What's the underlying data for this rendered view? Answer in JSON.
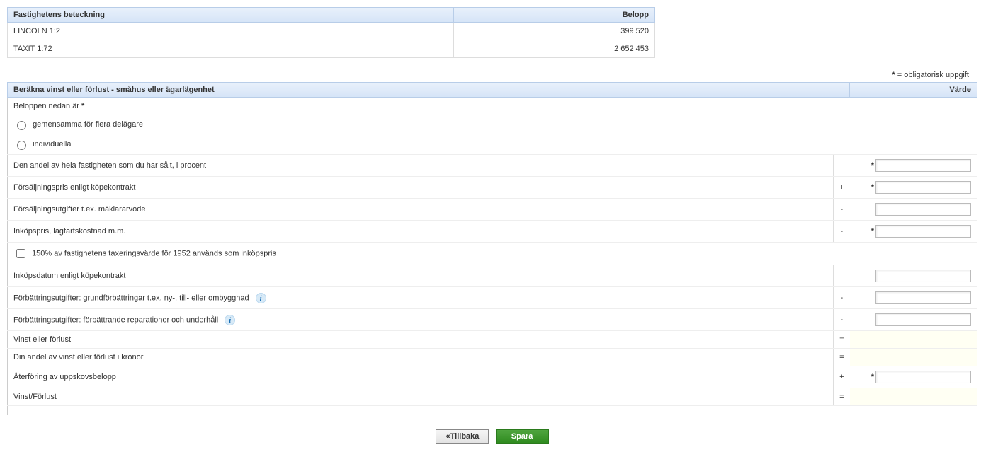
{
  "table1": {
    "headers": {
      "col1": "Fastighetens beteckning",
      "col2": "Belopp"
    },
    "rows": [
      {
        "name": "LINCOLN 1:2",
        "amount": "399 520"
      },
      {
        "name": "TAXIT 1:72",
        "amount": "2 652 453"
      }
    ]
  },
  "legend": {
    "symbol": "*",
    "text": " = obligatorisk uppgift"
  },
  "form": {
    "header_left": "Beräkna vinst eller förlust - småhus eller ägarlägenhet",
    "header_right": "Värde",
    "beloppen_label": "Beloppen nedan är",
    "radio_gemensam": "gemensamma för flera delägare",
    "radio_individ": "individuella",
    "rows": {
      "andel": {
        "label": "Den andel av hela fastigheten som du har sålt, i procent",
        "op": "",
        "required": true,
        "input": true
      },
      "forspris": {
        "label": "Försäljningspris enligt köpekontrakt",
        "op": "+",
        "required": true,
        "input": true
      },
      "forsutg": {
        "label": "Försäljningsutgifter t.ex. mäklararvode",
        "op": "-",
        "required": false,
        "input": true
      },
      "inkop": {
        "label": "Inköpspris, lagfartskostnad m.m.",
        "op": "-",
        "required": true,
        "input": true
      },
      "tax1952": {
        "label": "150% av fastighetens taxeringsvärde för 1952 används som inköpspris"
      },
      "inkopdatum": {
        "label": "Inköpsdatum enligt köpekontrakt",
        "op": "",
        "required": false,
        "input": true
      },
      "forbattr1": {
        "label": "Förbättringsutgifter: grundförbättringar t.ex. ny-, till- eller ombyggnad",
        "op": "-",
        "required": false,
        "input": true,
        "info": true
      },
      "forbattr2": {
        "label": "Förbättringsutgifter: förbättrande reparationer och underhåll",
        "op": "-",
        "required": false,
        "input": true,
        "info": true
      },
      "vinst": {
        "label": "Vinst eller förlust",
        "op": "=",
        "required": false,
        "input": false
      },
      "andelkr": {
        "label": "Din andel av vinst eller förlust i kronor",
        "op": "=",
        "required": false,
        "input": false
      },
      "aterforing": {
        "label": "Återföring av uppskovsbelopp",
        "op": "+",
        "required": true,
        "input": true
      },
      "vinstforlust": {
        "label": "Vinst/Förlust",
        "op": "=",
        "required": false,
        "input": false
      }
    }
  },
  "buttons": {
    "back": "«Tillbaka",
    "save": "Spara"
  }
}
